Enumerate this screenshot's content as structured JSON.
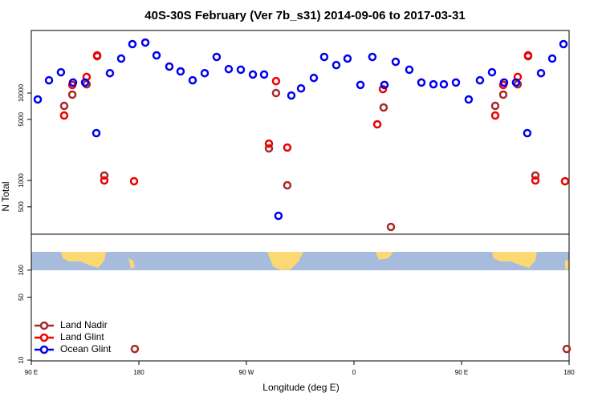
{
  "chart_data": [
    {
      "type": "scatter",
      "title": "40S-30S February (Ver 7b_s31)   2014-09-06 to 2017-03-31",
      "ylabel": "N Total",
      "log_y": true,
      "xlim": [
        90,
        540
      ],
      "ylim": [
        243,
        52000
      ],
      "yticks": [
        500,
        1000,
        5000,
        10000
      ],
      "series": [
        {
          "name": "Land Nadir",
          "color": "#a52a2a",
          "x": [
            117.5,
            124.3,
            136.3,
            145.1,
            151.1,
            288.8,
            294.8,
            304.2,
            384.8,
            390.9,
            478.2,
            484.9,
            497,
            505.7,
            511.8
          ],
          "values": [
            7130,
            9590,
            12600,
            26400,
            1140,
            2330,
            10000,
            881,
            6840,
            294,
            7130,
            9590,
            12600,
            26400,
            1140
          ]
        },
        {
          "name": "Land Glint",
          "color": "#ee0000",
          "x": [
            117.5,
            124.3,
            136.3,
            145.1,
            151.1,
            176,
            288.8,
            294.8,
            304.2,
            379.5,
            384.2,
            478.2,
            484.9,
            497,
            505.7,
            511.8,
            536.6
          ],
          "values": [
            5540,
            12400,
            15300,
            27000,
            1000,
            980,
            2640,
            13700,
            2380,
            4390,
            11100,
            5540,
            12400,
            15300,
            27000,
            1000,
            980
          ]
        },
        {
          "name": "Ocean Glint",
          "color": "#0000ee",
          "x": [
            95.4,
            104.8,
            114.8,
            124.9,
            135,
            144.4,
            155.8,
            165.2,
            174.6,
            185.4,
            194.8,
            205.5,
            214.9,
            225,
            235.1,
            245.1,
            255.2,
            265.3,
            275.4,
            284.8,
            296.8,
            307.6,
            315.7,
            326.4,
            335.1,
            345.2,
            354.6,
            365.4,
            375.4,
            385.5,
            394.9,
            406.3,
            416.4,
            426.5,
            435.2,
            445.3,
            456,
            465.4,
            475.5,
            485.6,
            495.6,
            505,
            516.5,
            525.9,
            535.3
          ],
          "values": [
            8450,
            14000,
            17300,
            13200,
            13200,
            3480,
            16900,
            24800,
            36300,
            37800,
            27000,
            20100,
            17700,
            14000,
            16900,
            25900,
            18800,
            18500,
            16300,
            16300,
            394,
            9380,
            11300,
            14900,
            25900,
            20900,
            24800,
            12400,
            25900,
            12400,
            22800,
            18500,
            13200,
            12600,
            12600,
            13200,
            8450,
            14000,
            17300,
            13200,
            13200,
            3480,
            16900,
            24800,
            36300
          ]
        }
      ]
    },
    {
      "type": "scatter",
      "xlabel": "Longitude (deg E)",
      "log_y": true,
      "legend": "bottom-left",
      "xlim": [
        90,
        540
      ],
      "ylim": [
        9.8,
        251
      ],
      "yticks": [
        10,
        50,
        100
      ],
      "xticks": [
        {
          "value": 90,
          "label": "90 E"
        },
        180,
        {
          "value": 270,
          "label": "90 W"
        },
        {
          "value": 360,
          "label": "0"
        },
        {
          "value": 450,
          "label": "90 E"
        },
        {
          "value": 540,
          "label": "180"
        }
      ],
      "series": [
        {
          "name": "Land Nadir",
          "color": "#a52a2a",
          "x": [
            176.6,
            538
          ],
          "values": [
            13.3,
            13.3
          ]
        },
        {
          "name": "Land Glint",
          "color": "#ee0000",
          "x": [],
          "values": []
        },
        {
          "name": "Ocean Glint",
          "color": "#0000ee",
          "x": [],
          "values": []
        }
      ]
    }
  ]
}
